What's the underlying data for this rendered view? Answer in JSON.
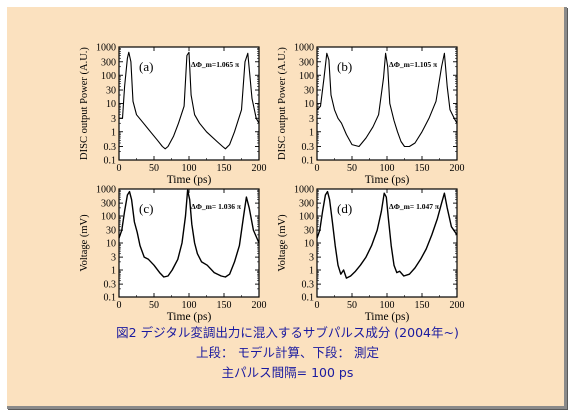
{
  "colors": {
    "background": "#fbe1bf",
    "plot_area": "#ffffff",
    "caption": "#1a1aa0",
    "trace": "#000000"
  },
  "caption": {
    "line1": "図2  デジタル変調出力に混入するサブパルス成分 (2004年~)",
    "line2": "上段： モデル計算、下段：  測定",
    "line3": "主パルス間隔= 100 ps"
  },
  "chart_data": [
    {
      "type": "line",
      "panel": "(a)",
      "annotation": "ΔΦ_m=1.065 π",
      "xlabel": "Time (ps)",
      "ylabel": "DISC output Power (A.U.)",
      "xlim": [
        0,
        200
      ],
      "ylim": [
        0.1,
        1000
      ],
      "yscale": "log",
      "xticks": [
        0,
        50,
        100,
        150,
        200
      ],
      "yticks": [
        0.1,
        0.3,
        1,
        3,
        10,
        30,
        100,
        300,
        1000
      ],
      "ytick_labels": [
        "0.1",
        "0.3",
        "1",
        "3",
        "10",
        "30",
        "100",
        "300",
        "1000"
      ],
      "x": [
        0,
        5,
        8,
        12,
        14,
        17,
        20,
        25,
        35,
        45,
        55,
        62,
        66,
        70,
        78,
        85,
        93,
        97,
        100,
        103,
        108,
        115,
        125,
        140,
        148,
        152,
        158,
        165,
        175,
        180,
        184,
        190,
        196,
        200
      ],
      "y": [
        3,
        3,
        40,
        400,
        650,
        300,
        12,
        4,
        2,
        1,
        0.5,
        0.3,
        0.25,
        0.3,
        0.7,
        2,
        8,
        500,
        650,
        20,
        4,
        2,
        1,
        0.45,
        0.3,
        0.25,
        0.35,
        1,
        6,
        300,
        600,
        15,
        3,
        2
      ]
    },
    {
      "type": "line",
      "panel": "(b)",
      "annotation": "ΔΦ_m=1.105 π",
      "xlabel": "Time (ps)",
      "ylabel": "DISC output Power (A.U.)",
      "xlim": [
        0,
        200
      ],
      "ylim": [
        0.1,
        1000
      ],
      "yscale": "log",
      "xticks": [
        0,
        50,
        100,
        150,
        200
      ],
      "yticks": [
        0.1,
        0.3,
        1,
        3,
        10,
        30,
        100,
        300,
        1000
      ],
      "ytick_labels": [
        "0.1",
        "0.3",
        "1",
        "3",
        "10",
        "30",
        "100",
        "300",
        "1000"
      ],
      "x": [
        0,
        5,
        10,
        14,
        17,
        20,
        25,
        30,
        35,
        42,
        50,
        60,
        70,
        80,
        88,
        95,
        98,
        101,
        104,
        110,
        115,
        120,
        125,
        132,
        140,
        150,
        160,
        170,
        178,
        182,
        186,
        190,
        196,
        200
      ],
      "y": [
        6,
        8,
        80,
        600,
        350,
        20,
        6,
        3,
        2,
        0.8,
        0.35,
        0.3,
        0.6,
        1.5,
        4,
        80,
        600,
        200,
        10,
        2.5,
        1,
        0.45,
        0.3,
        0.3,
        0.4,
        1,
        3,
        12,
        200,
        600,
        40,
        6,
        3,
        2
      ]
    },
    {
      "type": "line",
      "panel": "(c)",
      "annotation": "ΔΦ_m= 1.036 π",
      "xlabel": "Time (ps)",
      "ylabel": "Voltage (mV)",
      "xlim": [
        0,
        200
      ],
      "ylim": [
        0.1,
        1000
      ],
      "yscale": "log",
      "xticks": [
        0,
        50,
        100,
        150,
        200
      ],
      "yticks": [
        0.1,
        0.3,
        1,
        3,
        10,
        30,
        100,
        300,
        1000
      ],
      "ytick_labels": [
        "0.1",
        "0.3",
        "1",
        "3",
        "10",
        "30",
        "100",
        "300",
        "1000"
      ],
      "x": [
        0,
        4,
        8,
        12,
        15,
        18,
        22,
        26,
        30,
        36,
        42,
        50,
        58,
        64,
        70,
        76,
        84,
        90,
        95,
        98,
        101,
        104,
        108,
        112,
        118,
        126,
        136,
        146,
        152,
        158,
        165,
        172,
        178,
        182,
        186,
        192,
        200
      ],
      "y": [
        15,
        30,
        150,
        600,
        800,
        400,
        60,
        25,
        8,
        3,
        2.5,
        1.5,
        0.8,
        0.55,
        0.6,
        1,
        2.5,
        10,
        100,
        900,
        400,
        50,
        10,
        4,
        2,
        1.5,
        0.8,
        0.6,
        0.55,
        0.7,
        2,
        8,
        100,
        500,
        200,
        30,
        10
      ]
    },
    {
      "type": "line",
      "panel": "(d)",
      "annotation": "ΔΦ_m= 1.047 π",
      "xlabel": "Time (ps)",
      "ylabel": "Voltage (mV)",
      "xlim": [
        0,
        200
      ],
      "ylim": [
        0.1,
        1000
      ],
      "yscale": "log",
      "xticks": [
        0,
        50,
        100,
        150,
        200
      ],
      "yticks": [
        0.1,
        0.3,
        1,
        3,
        10,
        30,
        100,
        300,
        1000
      ],
      "ytick_labels": [
        "0.1",
        "0.3",
        "1",
        "3",
        "10",
        "30",
        "100",
        "300",
        "1000"
      ],
      "x": [
        0,
        4,
        8,
        12,
        15,
        18,
        22,
        26,
        30,
        34,
        38,
        42,
        48,
        55,
        62,
        70,
        78,
        86,
        92,
        96,
        99,
        102,
        106,
        110,
        114,
        118,
        124,
        132,
        140,
        148,
        156,
        164,
        172,
        178,
        182,
        186,
        192,
        200
      ],
      "y": [
        15,
        30,
        150,
        600,
        800,
        400,
        60,
        8,
        1.5,
        0.7,
        1,
        0.5,
        0.6,
        0.9,
        1.5,
        3,
        8,
        30,
        150,
        700,
        500,
        80,
        8,
        1.5,
        0.8,
        0.9,
        0.6,
        0.7,
        1.2,
        2.5,
        6,
        20,
        80,
        300,
        700,
        200,
        40,
        20
      ]
    }
  ]
}
